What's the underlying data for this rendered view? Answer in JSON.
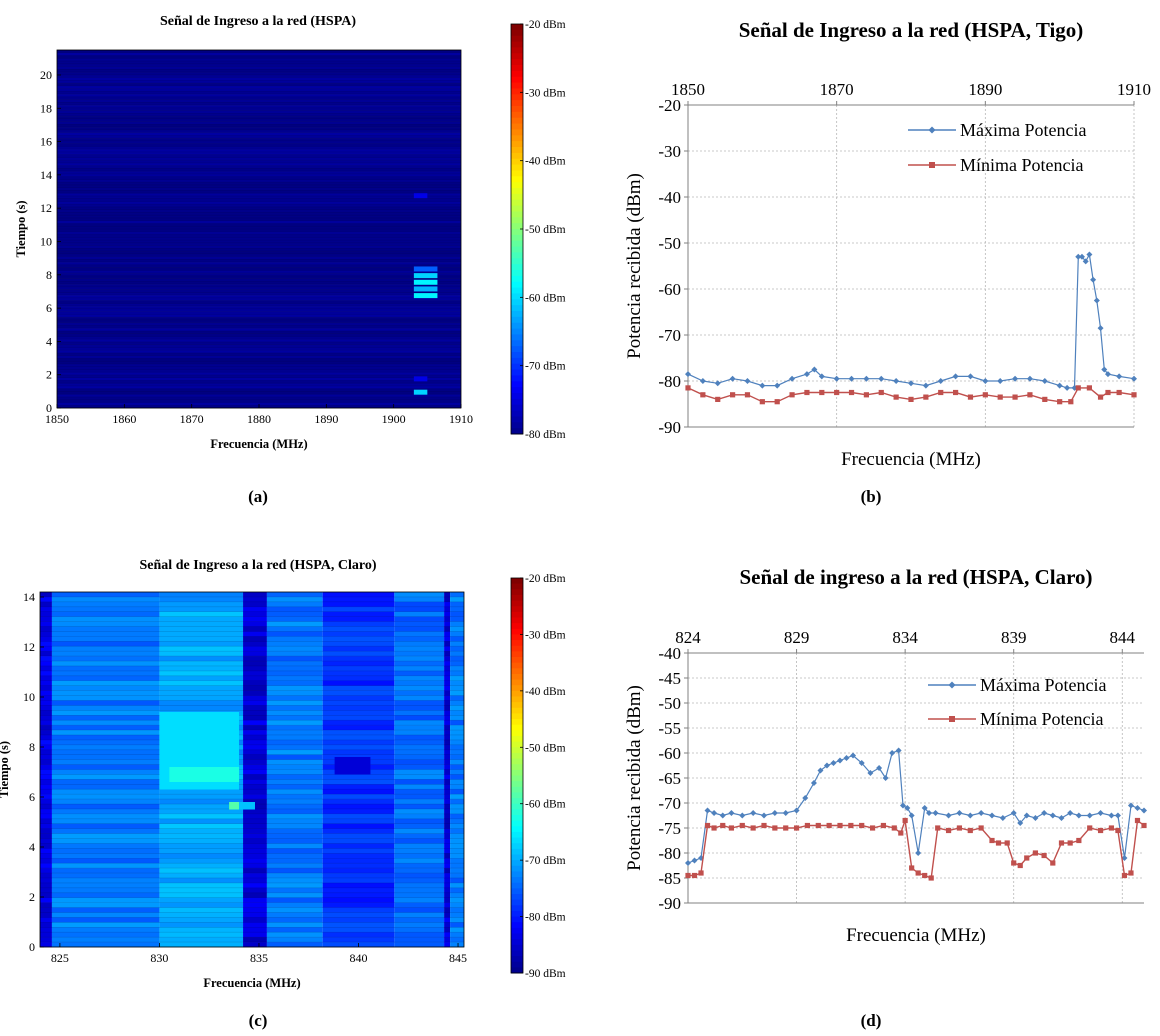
{
  "figure": {
    "panel_letters": [
      "(a)",
      "(b)",
      "(c)",
      "(d)"
    ]
  },
  "chart_data": [
    {
      "type": "heatmap",
      "panel": "(a)",
      "title": "Señal de Ingreso a la red (HSPA)",
      "xlabel": "Frecuencia (MHz)",
      "ylabel": "Tiempo (s)",
      "xlim": [
        1850,
        1910
      ],
      "ylim": [
        0,
        21.5
      ],
      "x_ticks": [
        1850,
        1860,
        1870,
        1880,
        1890,
        1900,
        1910
      ],
      "y_ticks": [
        0,
        2,
        4,
        6,
        8,
        10,
        12,
        14,
        16,
        18,
        20
      ],
      "colorbar": {
        "min": -80,
        "max": -20,
        "tick_labels": [
          "-20 dBm",
          "-30 dBm",
          "-40 dBm",
          "-50 dBm",
          "-60 dBm",
          "-70 dBm",
          "-80 dBm"
        ]
      },
      "background_dbm": -79,
      "hotspots": [
        {
          "x": [
            1903,
            1906.5
          ],
          "y": [
            8.2,
            8.5
          ],
          "dbm": -67
        },
        {
          "x": [
            1903,
            1906.5
          ],
          "y": [
            7.8,
            8.1
          ],
          "dbm": -60
        },
        {
          "x": [
            1903,
            1906.5
          ],
          "y": [
            7.4,
            7.7
          ],
          "dbm": -58
        },
        {
          "x": [
            1903,
            1906.5
          ],
          "y": [
            7.0,
            7.3
          ],
          "dbm": -62
        },
        {
          "x": [
            1903,
            1906.5
          ],
          "y": [
            6.6,
            6.9
          ],
          "dbm": -58
        },
        {
          "x": [
            1903,
            1905
          ],
          "y": [
            0.8,
            1.1
          ],
          "dbm": -60
        },
        {
          "x": [
            1903,
            1905
          ],
          "y": [
            12.6,
            12.9
          ],
          "dbm": -74
        },
        {
          "x": [
            1903,
            1905
          ],
          "y": [
            1.6,
            1.9
          ],
          "dbm": -74
        }
      ]
    },
    {
      "type": "line",
      "panel": "(b)",
      "title": "Señal de Ingreso a la red (HSPA, Tigo)",
      "xlabel": "Frecuencia (MHz)",
      "ylabel": "Potencia recibida (dBm)",
      "xlim": [
        1850,
        1910
      ],
      "ylim": [
        -90,
        -20
      ],
      "x_ticks": [
        1850,
        1870,
        1890,
        1910
      ],
      "y_ticks": [
        -20,
        -30,
        -40,
        -50,
        -60,
        -70,
        -80,
        -90
      ],
      "legend_position": "top-right",
      "series": [
        {
          "name": "Máxima Potencia",
          "color": "#4f81bd",
          "x": [
            1850,
            1852,
            1854,
            1856,
            1858,
            1860,
            1862,
            1864,
            1866,
            1867,
            1868,
            1870,
            1872,
            1874,
            1876,
            1878,
            1880,
            1882,
            1884,
            1886,
            1888,
            1890,
            1892,
            1894,
            1896,
            1898,
            1900,
            1901,
            1902,
            1902.5,
            1903,
            1903.5,
            1904,
            1904.5,
            1905,
            1905.5,
            1906,
            1906.5,
            1908,
            1910
          ],
          "values": [
            -78.5,
            -80,
            -80.5,
            -79.5,
            -80,
            -81,
            -81,
            -79.5,
            -78.5,
            -77.5,
            -79,
            -79.5,
            -79.5,
            -79.5,
            -79.5,
            -80,
            -80.5,
            -81,
            -80,
            -79,
            -79,
            -80,
            -80,
            -79.5,
            -79.5,
            -80,
            -81,
            -81.5,
            -81.5,
            -53,
            -53,
            -54,
            -52.5,
            -58,
            -62.5,
            -68.5,
            -77.5,
            -78.5,
            -79,
            -79.5
          ]
        },
        {
          "name": "Mínima Potencia",
          "color": "#c0504d",
          "x": [
            1850,
            1852,
            1854,
            1856,
            1858,
            1860,
            1862,
            1864,
            1866,
            1868,
            1870,
            1872,
            1874,
            1876,
            1878,
            1880,
            1882,
            1884,
            1886,
            1888,
            1890,
            1892,
            1894,
            1896,
            1898,
            1900,
            1901.5,
            1902.5,
            1904,
            1905.5,
            1906.5,
            1908,
            1910
          ],
          "values": [
            -81.5,
            -83,
            -84,
            -83,
            -83,
            -84.5,
            -84.5,
            -83,
            -82.5,
            -82.5,
            -82.5,
            -82.5,
            -83,
            -82.5,
            -83.5,
            -84,
            -83.5,
            -82.5,
            -82.5,
            -83.5,
            -83,
            -83.5,
            -83.5,
            -83,
            -84,
            -84.5,
            -84.5,
            -81.5,
            -81.5,
            -83.5,
            -82.5,
            -82.5,
            -83
          ]
        }
      ]
    },
    {
      "type": "heatmap",
      "panel": "(c)",
      "title": "Señal de Ingreso a la red (HSPA, Claro)",
      "xlabel": "Frecuencia (MHz)",
      "ylabel": "Tiempo (s)",
      "xlim": [
        824,
        845.3
      ],
      "ylim": [
        0,
        14.2
      ],
      "x_ticks": [
        825,
        830,
        835,
        840,
        845
      ],
      "y_ticks": [
        0,
        2,
        4,
        6,
        8,
        10,
        12,
        14
      ],
      "colorbar": {
        "min": -90,
        "max": -20,
        "tick_labels": [
          "-20 dBm",
          "-30 dBm",
          "-40 dBm",
          "-50 dBm",
          "-60 dBm",
          "-70 dBm",
          "-80 dBm",
          "-90 dBm"
        ]
      },
      "bands": [
        {
          "x": [
            824,
            824.6
          ],
          "dbm": -83
        },
        {
          "x": [
            824.6,
            830
          ],
          "dbm": -73
        },
        {
          "x": [
            830,
            834.2
          ],
          "dbm": -70
        },
        {
          "x": [
            834.2,
            835.4
          ],
          "dbm": -84
        },
        {
          "x": [
            835.4,
            838.2
          ],
          "dbm": -73
        },
        {
          "x": [
            838.2,
            841.8
          ],
          "dbm": -78
        },
        {
          "x": [
            841.8,
            844.3
          ],
          "dbm": -74
        },
        {
          "x": [
            844.3,
            844.6
          ],
          "dbm": -84
        },
        {
          "x": [
            844.6,
            845.3
          ],
          "dbm": -73
        }
      ],
      "hotspots": [
        {
          "x": [
            830,
            834
          ],
          "y": [
            6.3,
            9.4
          ],
          "dbm": -66
        },
        {
          "x": [
            830.5,
            834
          ],
          "y": [
            6.6,
            7.2
          ],
          "dbm": -62
        },
        {
          "x": [
            833.5,
            834
          ],
          "y": [
            5.5,
            5.8
          ],
          "dbm": -58
        },
        {
          "x": [
            834,
            834.8
          ],
          "y": [
            5.5,
            5.8
          ],
          "dbm": -68
        },
        {
          "x": [
            838.8,
            840.6
          ],
          "y": [
            6.9,
            7.6
          ],
          "dbm": -84
        }
      ]
    },
    {
      "type": "line",
      "panel": "(d)",
      "title": "Señal de ingreso a la red (HSPA, Claro)",
      "xlabel": "Frecuencia (MHz)",
      "ylabel": "Potencia recibida (dBm)",
      "xlim": [
        824,
        845
      ],
      "ylim": [
        -90,
        -40
      ],
      "x_ticks": [
        824,
        829,
        834,
        839,
        844
      ],
      "y_ticks": [
        -40,
        -45,
        -50,
        -55,
        -60,
        -65,
        -70,
        -75,
        -80,
        -85,
        -90
      ],
      "legend_position": "top-right",
      "series": [
        {
          "name": "Máxima Potencia",
          "color": "#4f81bd",
          "x": [
            824,
            824.3,
            824.6,
            824.9,
            825.2,
            825.6,
            826,
            826.5,
            827,
            827.5,
            828,
            828.5,
            829,
            829.4,
            829.8,
            830.1,
            830.4,
            830.7,
            831,
            831.3,
            831.6,
            832,
            832.4,
            832.8,
            833.1,
            833.4,
            833.7,
            833.9,
            834.1,
            834.3,
            834.6,
            834.9,
            835.1,
            835.4,
            836,
            836.5,
            837,
            837.5,
            838,
            838.5,
            839,
            839.3,
            839.6,
            840,
            840.4,
            840.8,
            841.2,
            841.6,
            842,
            842.5,
            843,
            843.5,
            843.8,
            844.1,
            844.4,
            844.7,
            845
          ],
          "values": [
            -82,
            -81.5,
            -81,
            -71.5,
            -72,
            -72.5,
            -72,
            -72.5,
            -72,
            -72.5,
            -72,
            -72,
            -71.5,
            -69,
            -66,
            -63.5,
            -62.5,
            -62,
            -61.5,
            -61,
            -60.5,
            -62,
            -64,
            -63,
            -65,
            -60,
            -59.5,
            -70.5,
            -71,
            -72.5,
            -80,
            -71,
            -72,
            -72,
            -72.5,
            -72,
            -72.5,
            -72,
            -72.5,
            -73,
            -72,
            -74,
            -72.5,
            -73,
            -72,
            -72.5,
            -73,
            -72,
            -72.5,
            -72.5,
            -72,
            -72.5,
            -72.5,
            -81,
            -70.5,
            -71,
            -71.5
          ]
        },
        {
          "name": "Mínima Potencia",
          "color": "#c0504d",
          "x": [
            824,
            824.3,
            824.6,
            824.9,
            825.2,
            825.6,
            826,
            826.5,
            827,
            827.5,
            828,
            828.5,
            829,
            829.5,
            830,
            830.5,
            831,
            831.5,
            832,
            832.5,
            833,
            833.5,
            833.8,
            834,
            834.3,
            834.6,
            834.9,
            835.2,
            835.5,
            836,
            836.5,
            837,
            837.5,
            838,
            838.3,
            838.7,
            839,
            839.3,
            839.6,
            840,
            840.4,
            840.8,
            841.2,
            841.6,
            842,
            842.5,
            843,
            843.5,
            843.8,
            844.1,
            844.4,
            844.7,
            845
          ],
          "values": [
            -84.5,
            -84.5,
            -84,
            -74.5,
            -75,
            -74.5,
            -75,
            -74.5,
            -75,
            -74.5,
            -75,
            -75,
            -75,
            -74.5,
            -74.5,
            -74.5,
            -74.5,
            -74.5,
            -74.5,
            -75,
            -74.5,
            -75,
            -76,
            -73.5,
            -83,
            -84,
            -84.5,
            -85,
            -75,
            -75.5,
            -75,
            -75.5,
            -75,
            -77.5,
            -78,
            -78,
            -82,
            -82.5,
            -81,
            -80,
            -80.5,
            -82,
            -78,
            -78,
            -77.5,
            -75,
            -75.5,
            -75,
            -75.5,
            -84.5,
            -84,
            -73.5,
            -74.5
          ]
        }
      ]
    }
  ]
}
